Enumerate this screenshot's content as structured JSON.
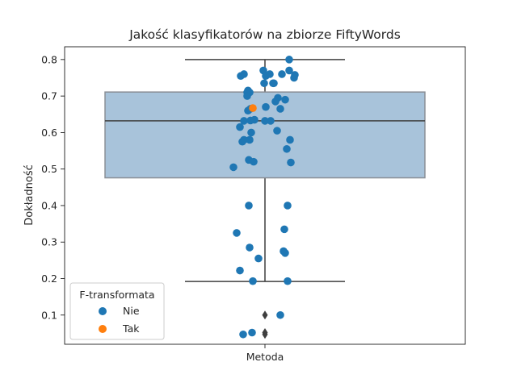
{
  "chart_data": {
    "type": "box-strip",
    "title": "Jakość klasyfikatorów na zbiorze FiftyWords",
    "xlabel": "",
    "ylabel": "Dokładność",
    "categories": [
      "Metoda"
    ],
    "ylim": [
      0.02,
      0.835
    ],
    "yticks": [
      0.1,
      0.2,
      0.3,
      0.4,
      0.5,
      0.6,
      0.7,
      0.8
    ],
    "ytick_labels": [
      "0.1",
      "0.2",
      "0.3",
      "0.4",
      "0.5",
      "0.6",
      "0.7",
      "0.8"
    ],
    "grid": false,
    "box": {
      "q1": 0.476,
      "median": 0.632,
      "q3": 0.711,
      "whisker_low": 0.192,
      "whisker_high": 0.8,
      "outliers": [
        0.1,
        0.052,
        0.047
      ],
      "color": "#a8c3da"
    },
    "series": [
      {
        "name": "Nie",
        "color": "#1f77b4",
        "points": [
          {
            "x": -0.15,
            "y": 0.755
          },
          {
            "x": -0.13,
            "y": 0.76
          },
          {
            "x": -0.11,
            "y": 0.71
          },
          {
            "x": -0.105,
            "y": 0.715
          },
          {
            "x": -0.095,
            "y": 0.71
          },
          {
            "x": -0.11,
            "y": 0.7
          },
          {
            "x": -0.105,
            "y": 0.66
          },
          {
            "x": -0.09,
            "y": 0.665
          },
          {
            "x": -0.13,
            "y": 0.632
          },
          {
            "x": -0.09,
            "y": 0.633
          },
          {
            "x": -0.065,
            "y": 0.635
          },
          {
            "x": -0.155,
            "y": 0.615
          },
          {
            "x": -0.085,
            "y": 0.6
          },
          {
            "x": -0.14,
            "y": 0.575
          },
          {
            "x": -0.13,
            "y": 0.58
          },
          {
            "x": -0.095,
            "y": 0.58
          },
          {
            "x": -0.1,
            "y": 0.525
          },
          {
            "x": -0.07,
            "y": 0.52
          },
          {
            "x": -0.195,
            "y": 0.505
          },
          {
            "x": -0.01,
            "y": 0.77
          },
          {
            "x": -0.005,
            "y": 0.735
          },
          {
            "x": 0.005,
            "y": 0.755
          },
          {
            "x": 0.03,
            "y": 0.76
          },
          {
            "x": 0.055,
            "y": 0.735
          },
          {
            "x": 0.05,
            "y": 0.735
          },
          {
            "x": 0.08,
            "y": 0.695
          },
          {
            "x": 0.065,
            "y": 0.685
          },
          {
            "x": 0.095,
            "y": 0.665
          },
          {
            "x": 0.125,
            "y": 0.69
          },
          {
            "x": 0.005,
            "y": 0.67
          },
          {
            "x": 0,
            "y": 0.632
          },
          {
            "x": 0.035,
            "y": 0.632
          },
          {
            "x": 0.075,
            "y": 0.605
          },
          {
            "x": 0.155,
            "y": 0.58
          },
          {
            "x": 0.135,
            "y": 0.555
          },
          {
            "x": 0.16,
            "y": 0.518
          },
          {
            "x": 0.105,
            "y": 0.76
          },
          {
            "x": 0.15,
            "y": 0.8
          },
          {
            "x": 0.15,
            "y": 0.77
          },
          {
            "x": 0.18,
            "y": 0.75
          },
          {
            "x": 0.185,
            "y": 0.758
          },
          {
            "x": -0.1,
            "y": 0.4
          },
          {
            "x": 0.14,
            "y": 0.4
          },
          {
            "x": -0.175,
            "y": 0.325
          },
          {
            "x": 0.12,
            "y": 0.335
          },
          {
            "x": -0.095,
            "y": 0.285
          },
          {
            "x": -0.04,
            "y": 0.255
          },
          {
            "x": 0.115,
            "y": 0.275
          },
          {
            "x": 0.125,
            "y": 0.27
          },
          {
            "x": -0.155,
            "y": 0.222
          },
          {
            "x": -0.075,
            "y": 0.193
          },
          {
            "x": 0.14,
            "y": 0.193
          },
          {
            "x": 0.095,
            "y": 0.1
          },
          {
            "x": -0.135,
            "y": 0.047
          },
          {
            "x": -0.08,
            "y": 0.052
          }
        ]
      },
      {
        "name": "Tak",
        "color": "#ff7f0e",
        "points": [
          {
            "x": -0.075,
            "y": 0.667
          }
        ]
      }
    ],
    "legend": {
      "title": "F-transformata",
      "placement": "lower-left",
      "entries": [
        "Nie",
        "Tak"
      ]
    }
  }
}
